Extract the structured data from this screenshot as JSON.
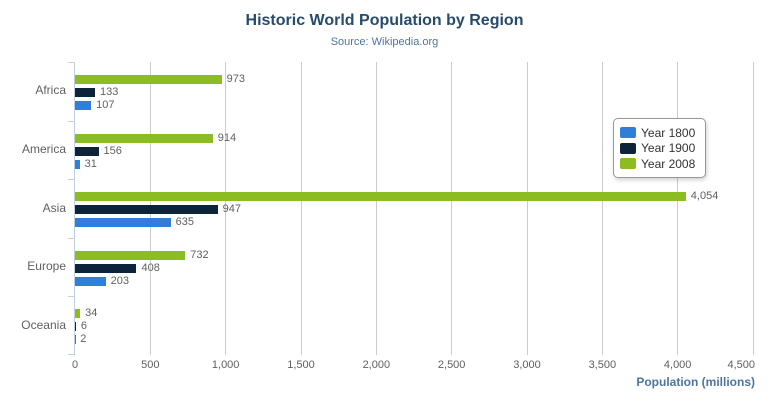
{
  "chart": {
    "context_button_icon": "hamburger-menu-icon"
  },
  "chart_data": {
    "type": "bar",
    "title": "Historic World Population by Region",
    "subtitle": "Source: Wikipedia.org",
    "categories": [
      "Africa",
      "America",
      "Asia",
      "Europe",
      "Oceania"
    ],
    "series": [
      {
        "name": "Year 1800",
        "color": "#2f7ed8",
        "values": [
          107,
          31,
          635,
          203,
          2
        ]
      },
      {
        "name": "Year 1900",
        "color": "#0d233a",
        "values": [
          133,
          156,
          947,
          408,
          6
        ]
      },
      {
        "name": "Year 2008",
        "color": "#8bbc21",
        "values": [
          973,
          914,
          4054,
          732,
          34
        ]
      }
    ],
    "bar_display_order": [
      2,
      1,
      0
    ],
    "xlabel": "Population (millions)",
    "xlim": [
      0,
      4500
    ],
    "xticks": [
      0,
      500,
      1000,
      1500,
      2000,
      2500,
      3000,
      3500,
      4000,
      4500
    ],
    "grid": true,
    "legend_position": "inside-right",
    "styles": {
      "title_color": "#274b6d",
      "subtitle_color": "#4d759e",
      "axis_title_color": "#4d759e",
      "tick_label_color": "#606060",
      "category_label_color": "#606060",
      "data_label_color": "#606060",
      "gridline_color": "#cccccc",
      "category_axis_line_color": "#c0d0e0",
      "legend_border_color": "#999999",
      "legend_text_color": "#333333",
      "background_color": "#ffffff",
      "menu_icon_color": "#666666"
    }
  }
}
